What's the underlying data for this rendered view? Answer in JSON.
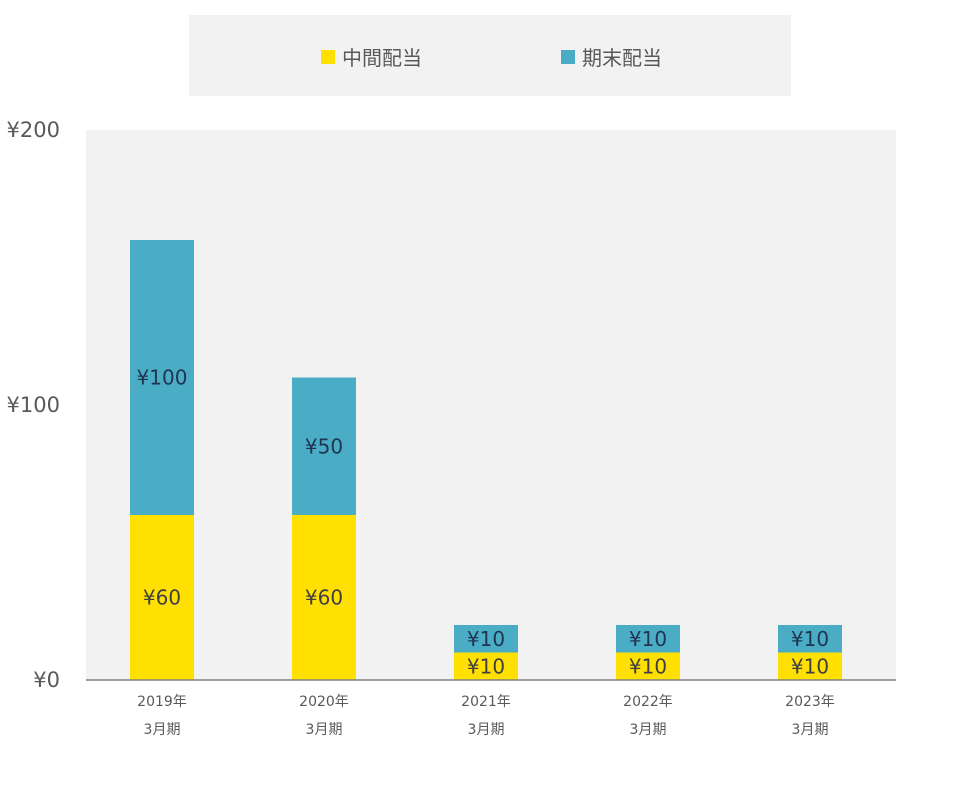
{
  "chart_data": {
    "type": "bar",
    "stacked": true,
    "categories": [
      [
        "2019年",
        "3月期"
      ],
      [
        "2020年",
        "3月期"
      ],
      [
        "2021年",
        "3月期"
      ],
      [
        "2022年",
        "3月期"
      ],
      [
        "2023年",
        "3月期"
      ]
    ],
    "series": [
      {
        "name": "中間配当",
        "color": "#ffe000",
        "values": [
          60,
          60,
          10,
          10,
          10
        ],
        "labels": [
          "¥60",
          "¥60",
          "¥10",
          "¥10",
          "¥10"
        ]
      },
      {
        "name": "期末配当",
        "color": "#4bacc6",
        "values": [
          100,
          50,
          10,
          10,
          10
        ],
        "labels": [
          "¥100",
          "¥50",
          "¥10",
          "¥10",
          "¥10"
        ]
      }
    ],
    "ylim": [
      0,
      200
    ],
    "yticks": [
      {
        "value": 0,
        "label": "¥0"
      },
      {
        "value": 100,
        "label": "¥100"
      },
      {
        "value": 200,
        "label": "¥200"
      }
    ],
    "legend_position": "top",
    "plot_background": "#f2f2f2"
  }
}
